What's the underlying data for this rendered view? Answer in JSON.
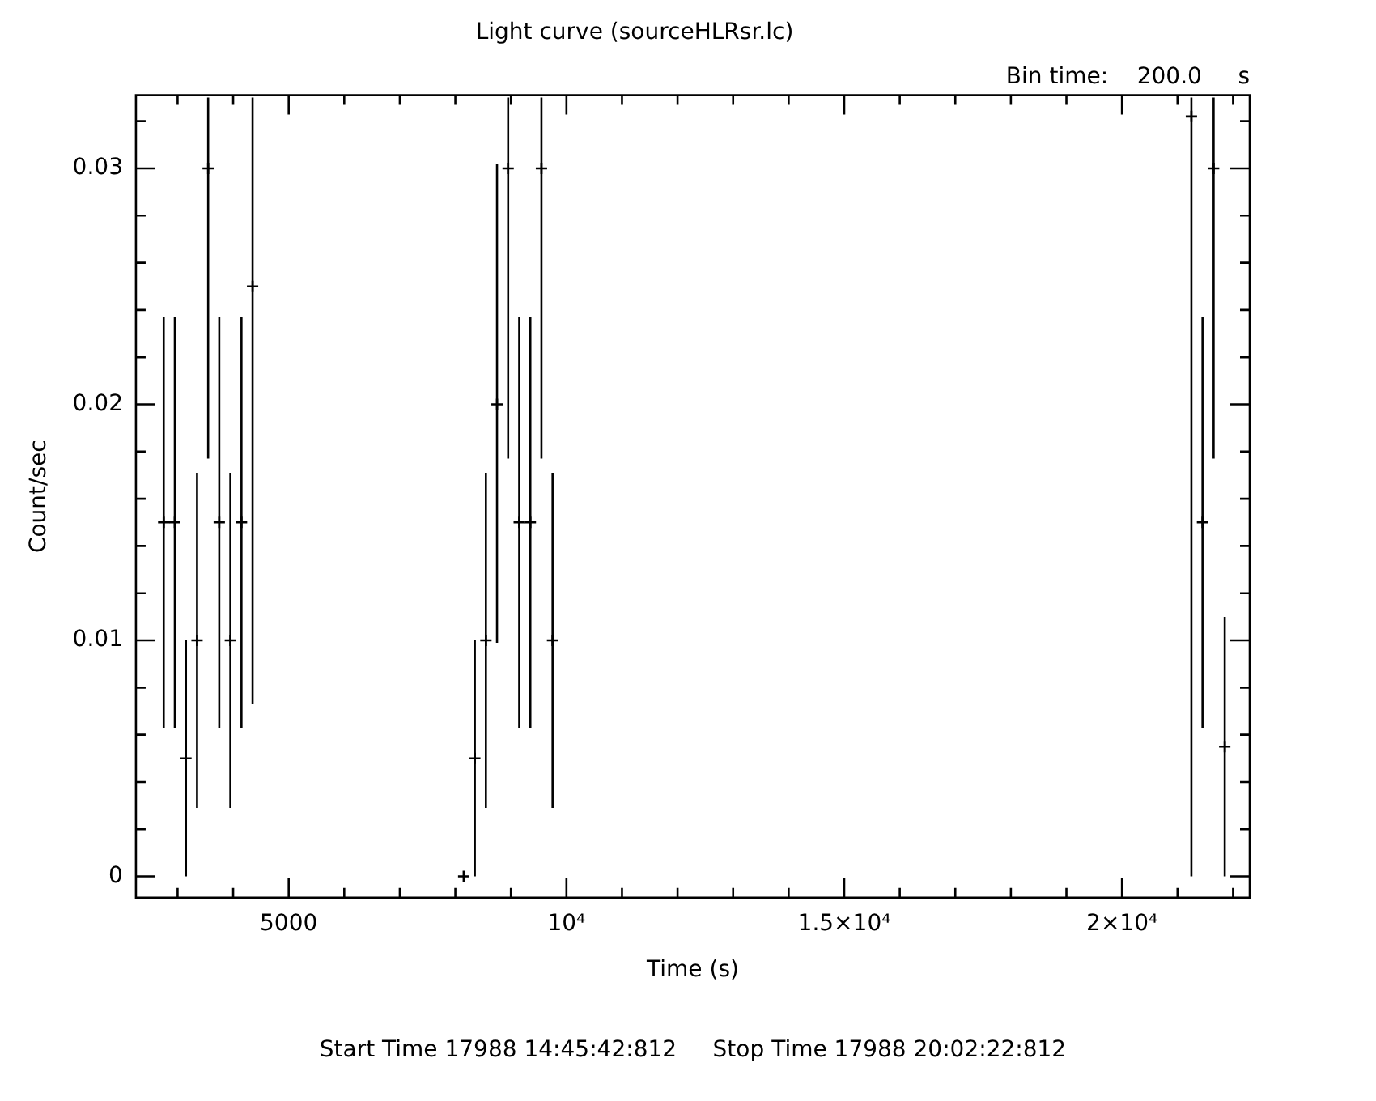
{
  "chart_data": {
    "type": "scatter",
    "title": "Light curve (sourceHLRsr.lc)",
    "xlabel": "Time (s)",
    "ylabel": "Count/sec",
    "annotations": [
      "Bin time:    200.0     s",
      "Start Time 17988 14:45:42:812     Stop Time 17988 20:02:22:812"
    ],
    "color": "#000000",
    "marker": "cross",
    "grid": false,
    "legend": false,
    "x": [
      2750,
      2950,
      3150,
      3350,
      3550,
      3750,
      3950,
      4150,
      4350,
      8150,
      8350,
      8550,
      8750,
      8950,
      9150,
      9350,
      9550,
      9750,
      21250,
      21450,
      21650,
      21850
    ],
    "values": [
      0.015,
      0.015,
      0.005,
      0.01,
      0.03,
      0.015,
      0.01,
      0.015,
      0.025,
      0,
      0.005,
      0.01,
      0.02,
      0.03,
      0.015,
      0.015,
      0.03,
      0.01,
      0.0322,
      0.015,
      0.03,
      0.0055
    ],
    "errors": [
      [
        0.0063,
        0.0237
      ],
      [
        0.0063,
        0.0237
      ],
      [
        0,
        0.01
      ],
      [
        0.0029,
        0.0171
      ],
      [
        0.0177,
        0.033
      ],
      [
        0.0063,
        0.0237
      ],
      [
        0.0029,
        0.0171
      ],
      [
        0.0063,
        0.0237
      ],
      [
        0.0073,
        0.033
      ],
      null,
      [
        0,
        0.01
      ],
      [
        0.0029,
        0.0171
      ],
      [
        0.0099,
        0.0302
      ],
      [
        0.0177,
        0.033
      ],
      [
        0.0063,
        0.0237
      ],
      [
        0.0063,
        0.0237
      ],
      [
        0.0177,
        0.033
      ],
      [
        0.0029,
        0.0171
      ],
      [
        0,
        0.033
      ],
      [
        0.0063,
        0.0237
      ],
      [
        0.0177,
        0.033
      ],
      [
        0,
        0.011
      ]
    ],
    "xlim": [
      2250,
      22300
    ],
    "ylim": [
      -0.0009,
      0.0331
    ],
    "xticks": [
      {
        "value": 3000,
        "label": null
      },
      {
        "value": 4000,
        "label": null
      },
      5000,
      {
        "value": 6000,
        "label": null
      },
      {
        "value": 7000,
        "label": null
      },
      {
        "value": 8000,
        "label": null
      },
      {
        "value": 9000,
        "label": null
      },
      {
        "value": 10000,
        "label": "10⁴"
      },
      {
        "value": 11000,
        "label": null
      },
      {
        "value": 12000,
        "label": null
      },
      {
        "value": 13000,
        "label": null
      },
      {
        "value": 14000,
        "label": null
      },
      {
        "value": 15000,
        "label": "1.5×10⁴"
      },
      {
        "value": 16000,
        "label": null
      },
      {
        "value": 17000,
        "label": null
      },
      {
        "value": 18000,
        "label": null
      },
      {
        "value": 19000,
        "label": null
      },
      {
        "value": 20000,
        "label": "2×10⁴"
      },
      {
        "value": 21000,
        "label": null
      },
      {
        "value": 22000,
        "label": null
      }
    ],
    "yticks": [
      0,
      {
        "value": 0.002,
        "label": null
      },
      {
        "value": 0.004,
        "label": null
      },
      {
        "value": 0.006,
        "label": null
      },
      {
        "value": 0.008,
        "label": null
      },
      0.01,
      {
        "value": 0.012,
        "label": null
      },
      {
        "value": 0.014,
        "label": null
      },
      {
        "value": 0.016,
        "label": null
      },
      {
        "value": 0.018,
        "label": null
      },
      0.02,
      {
        "value": 0.022,
        "label": null
      },
      {
        "value": 0.024,
        "label": null
      },
      {
        "value": 0.026,
        "label": null
      },
      {
        "value": 0.028,
        "label": null
      },
      0.03,
      {
        "value": 0.032,
        "label": null
      }
    ]
  }
}
